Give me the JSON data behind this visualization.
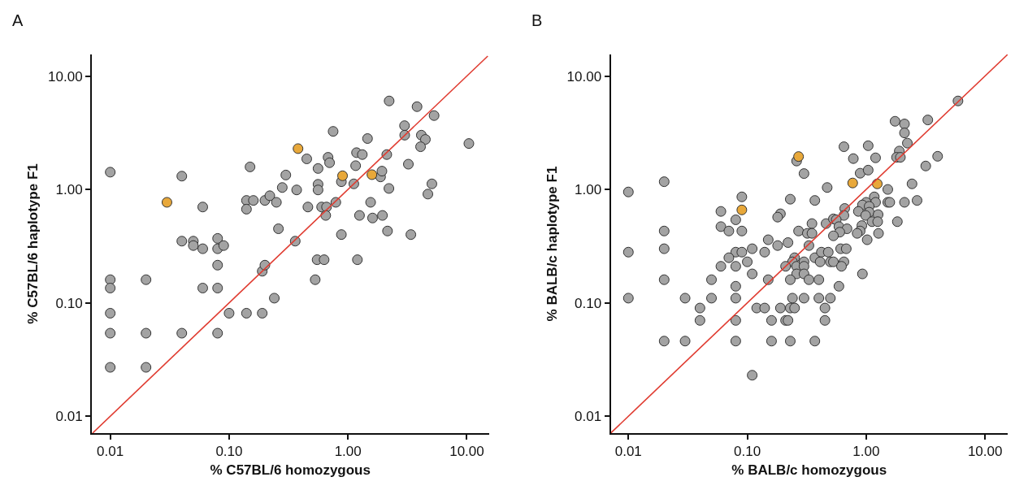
{
  "chart_data": [
    {
      "type": "scatter",
      "title": "A",
      "xlabel": "% C57BL/6 homozygous",
      "ylabel": "% C57BL/6 haplotype F1",
      "log": "xy",
      "marker": "circle",
      "xlim": [
        0.007,
        15.3
      ],
      "ylim": [
        0.0071,
        15.5
      ],
      "xticks": [
        0.01,
        {
          "value": 0.1,
          "label": "0.10"
        },
        {
          "value": 1,
          "label": "1.00"
        },
        {
          "value": 10,
          "label": "10.00"
        }
      ],
      "yticks": [
        0.01,
        {
          "value": 0.1,
          "label": "0.10"
        },
        {
          "value": 1,
          "label": "1.00"
        },
        {
          "value": 10,
          "label": "10.00"
        }
      ],
      "series": [
        {
          "color": "#a3a3a3",
          "x": [
            0.01,
            0.01,
            0.01,
            0.01,
            0.01,
            0.01,
            0.02,
            0.02,
            0.02,
            0.04,
            0.04,
            0.04,
            0.05,
            0.05,
            0.06,
            0.06,
            0.06,
            0.08,
            0.08,
            0.08,
            0.08,
            0.08,
            0.09,
            0.1,
            0.14,
            0.14,
            0.15,
            0.16,
            0.14,
            0.19,
            0.19,
            0.2,
            0.2,
            0.22,
            0.25,
            0.24,
            0.26,
            0.28,
            0.3,
            0.36,
            0.37,
            0.45,
            0.46,
            0.53,
            0.55,
            0.63,
            0.56,
            0.56,
            0.56,
            0.6,
            0.66,
            0.65,
            0.68,
            0.7,
            0.75,
            0.79,
            0.88,
            0.88,
            1.12,
            1.16,
            1.18,
            1.32,
            1.25,
            1.2,
            1.46,
            1.55,
            1.61,
            1.88,
            1.93,
            1.95,
            2.12,
            2.21,
            2.15,
            2.22,
            2.99,
            3.0,
            3.22,
            3.38,
            3.81,
            4.14,
            4.48,
            4.08,
            5.08,
            4.7,
            5.3,
            10.4
          ],
          "values": [
            1.42,
            0.16,
            0.135,
            0.081,
            0.054,
            0.027,
            0.16,
            0.054,
            0.027,
            1.31,
            0.35,
            0.054,
            0.35,
            0.32,
            0.7,
            0.3,
            0.135,
            0.37,
            0.3,
            0.215,
            0.135,
            0.054,
            0.32,
            0.081,
            0.8,
            0.67,
            1.58,
            0.8,
            0.081,
            0.081,
            0.19,
            0.215,
            0.8,
            0.88,
            0.77,
            0.11,
            0.45,
            1.04,
            1.34,
            0.35,
            0.99,
            1.86,
            0.7,
            0.16,
            0.24,
            0.24,
            1.53,
            1.11,
            0.99,
            0.7,
            0.7,
            0.59,
            1.92,
            1.72,
            3.25,
            0.77,
            1.17,
            0.4,
            1.12,
            1.62,
            2.11,
            2.03,
            0.59,
            0.24,
            2.81,
            0.77,
            0.56,
            1.29,
            1.45,
            0.59,
            2.03,
            1.02,
            0.43,
            6.03,
            3.65,
            3.01,
            1.67,
            0.4,
            5.37,
            3.01,
            2.76,
            2.38,
            1.12,
            0.91,
            4.48,
            2.54
          ]
        },
        {
          "color": "#e8a83a",
          "x": [
            0.03,
            0.38,
            0.9,
            1.59
          ],
          "values": [
            0.77,
            2.29,
            1.32,
            1.35
          ]
        },
        {
          "type": "line",
          "marker": "none",
          "color": "#e03c31",
          "x": [
            0.0071,
            15
          ],
          "values": [
            0.0071,
            15
          ]
        }
      ]
    },
    {
      "type": "scatter",
      "title": "B",
      "xlabel": "% BALB/c homozygous",
      "ylabel": "% BALB/c haplotype F1",
      "log": "xy",
      "marker": "circle",
      "xlim": [
        0.0071,
        15.5
      ],
      "ylim": [
        0.0071,
        15.5
      ],
      "xticks": [
        0.01,
        {
          "value": 0.1,
          "label": "0.10"
        },
        {
          "value": 1,
          "label": "1.00"
        },
        {
          "value": 10,
          "label": "10.00"
        }
      ],
      "yticks": [
        0.01,
        {
          "value": 0.1,
          "label": "0.10"
        },
        {
          "value": 1,
          "label": "1.00"
        },
        {
          "value": 10,
          "label": "10.00"
        }
      ],
      "series": [
        {
          "color": "#a3a3a3",
          "x": [
            5.92,
            1.75,
            2.1,
            3.3,
            2.1,
            2.22,
            1.9,
            1.8,
            1.94,
            3.99,
            3.17,
            0.65,
            1.04,
            0.78,
            1.2,
            0.26,
            0.3,
            0.89,
            1.04,
            2.43,
            1.52,
            0.47,
            0.02,
            0.01,
            0.09,
            0.23,
            0.37,
            1.17,
            1.2,
            1.52,
            1.58,
            2.1,
            2.68,
            1.0,
            0.93,
            1.06,
            0.66,
            0.86,
            1.06,
            1.26,
            0.99,
            0.65,
            1.12,
            1.25,
            1.83,
            0.06,
            0.08,
            0.19,
            0.18,
            0.46,
            0.35,
            0.53,
            0.56,
            0.59,
            0.69,
            0.92,
            0.89,
            0.84,
            1.27,
            1.02,
            0.6,
            0.53,
            0.06,
            0.07,
            0.09,
            0.02,
            0.27,
            0.32,
            0.35,
            0.15,
            0.18,
            0.22,
            0.33,
            0.61,
            0.68,
            0.02,
            0.01,
            0.08,
            0.09,
            0.11,
            0.14,
            0.07,
            0.1,
            0.06,
            0.08,
            0.11,
            0.25,
            0.24,
            0.21,
            0.26,
            0.3,
            0.3,
            0.26,
            0.3,
            0.37,
            0.41,
            0.42,
            0.48,
            0.5,
            0.53,
            0.65,
            0.62,
            0.93,
            0.23,
            0.33,
            0.4,
            0.15,
            0.05,
            0.02,
            0.08,
            0.59,
            0.01,
            0.03,
            0.05,
            0.08,
            0.24,
            0.3,
            0.4,
            0.5,
            0.04,
            0.12,
            0.14,
            0.19,
            0.23,
            0.25,
            0.45,
            0.04,
            0.08,
            0.16,
            0.21,
            0.22,
            0.45,
            0.02,
            0.03,
            0.08,
            0.16,
            0.23,
            0.37,
            0.11
          ],
          "values": [
            6.03,
            3.99,
            3.78,
            4.1,
            3.15,
            2.56,
            2.18,
            1.92,
            1.92,
            1.96,
            1.61,
            2.38,
            2.43,
            1.87,
            1.9,
            1.78,
            1.38,
            1.39,
            1.48,
            1.12,
            1.0,
            1.04,
            1.17,
            0.95,
            0.86,
            0.82,
            0.8,
            0.86,
            0.77,
            0.77,
            0.77,
            0.77,
            0.8,
            0.77,
            0.73,
            0.71,
            0.68,
            0.64,
            0.63,
            0.6,
            0.59,
            0.59,
            0.52,
            0.52,
            0.52,
            0.64,
            0.54,
            0.61,
            0.57,
            0.5,
            0.5,
            0.55,
            0.54,
            0.47,
            0.45,
            0.48,
            0.43,
            0.41,
            0.41,
            0.36,
            0.42,
            0.39,
            0.47,
            0.43,
            0.43,
            0.43,
            0.43,
            0.41,
            0.41,
            0.36,
            0.32,
            0.34,
            0.32,
            0.3,
            0.3,
            0.3,
            0.28,
            0.28,
            0.28,
            0.3,
            0.28,
            0.25,
            0.23,
            0.21,
            0.21,
            0.18,
            0.25,
            0.23,
            0.21,
            0.21,
            0.23,
            0.21,
            0.18,
            0.18,
            0.25,
            0.23,
            0.28,
            0.28,
            0.23,
            0.23,
            0.23,
            0.21,
            0.18,
            0.16,
            0.16,
            0.16,
            0.16,
            0.16,
            0.16,
            0.14,
            0.14,
            0.11,
            0.11,
            0.11,
            0.11,
            0.11,
            0.11,
            0.11,
            0.11,
            0.09,
            0.09,
            0.09,
            0.09,
            0.09,
            0.09,
            0.09,
            0.07,
            0.07,
            0.07,
            0.07,
            0.07,
            0.07,
            0.046,
            0.046,
            0.046,
            0.046,
            0.046,
            0.046,
            0.023
          ]
        },
        {
          "color": "#e8a83a",
          "x": [
            0.27,
            0.77,
            1.24,
            0.09
          ],
          "values": [
            1.95,
            1.14,
            1.12,
            0.66
          ]
        },
        {
          "type": "line",
          "marker": "none",
          "color": "#e03c31",
          "x": [
            0.0071,
            15.5
          ],
          "values": [
            0.0071,
            15.5
          ]
        }
      ]
    }
  ]
}
